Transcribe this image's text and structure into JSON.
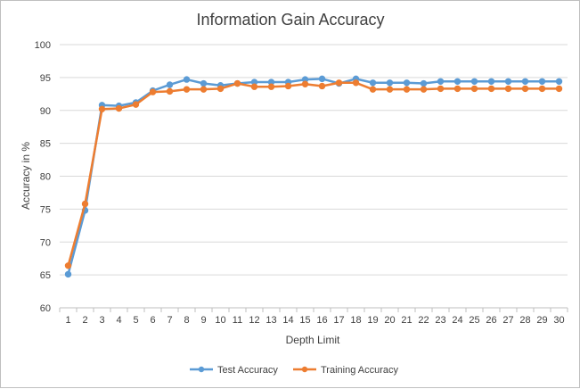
{
  "chart_data": {
    "type": "line",
    "title": "Information Gain Accuracy",
    "xlabel": "Depth Limit",
    "ylabel": "Accuracy in %",
    "x": [
      1,
      2,
      3,
      4,
      5,
      6,
      7,
      8,
      9,
      10,
      11,
      12,
      13,
      14,
      15,
      16,
      17,
      18,
      19,
      20,
      21,
      22,
      23,
      24,
      25,
      26,
      27,
      28,
      29,
      30
    ],
    "ylim": [
      60,
      100
    ],
    "yticks": [
      60,
      65,
      70,
      75,
      80,
      85,
      90,
      95,
      100
    ],
    "grid": true,
    "legend_position": "bottom",
    "series": [
      {
        "name": "Test Accuracy",
        "color": "#5b9bd5",
        "values": [
          65.1,
          74.8,
          90.8,
          90.7,
          91.2,
          93.0,
          93.9,
          94.7,
          94.1,
          93.8,
          94.1,
          94.3,
          94.3,
          94.3,
          94.7,
          94.8,
          94.1,
          94.8,
          94.2,
          94.2,
          94.2,
          94.1,
          94.4,
          94.4,
          94.4,
          94.4,
          94.4,
          94.4,
          94.4,
          94.4
        ]
      },
      {
        "name": "Training Accuracy",
        "color": "#ed7d31",
        "values": [
          66.4,
          75.8,
          90.2,
          90.3,
          90.9,
          92.8,
          92.9,
          93.2,
          93.2,
          93.3,
          94.1,
          93.6,
          93.6,
          93.7,
          94.0,
          93.7,
          94.2,
          94.2,
          93.2,
          93.2,
          93.2,
          93.2,
          93.3,
          93.3,
          93.3,
          93.3,
          93.3,
          93.3,
          93.3,
          93.3
        ]
      }
    ]
  }
}
